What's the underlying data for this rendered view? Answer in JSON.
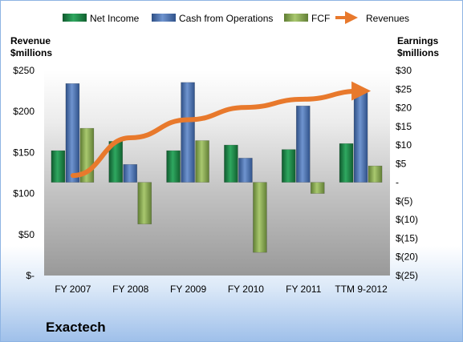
{
  "chart_data": {
    "type": "bar",
    "company": "Exactech",
    "categories": [
      "FY 2007",
      "FY 2008",
      "FY 2009",
      "FY 2010",
      "FY 2011",
      "TTM 9-2012"
    ],
    "series": [
      {
        "name": "Net Income",
        "axis": "right",
        "color": "#1e8a4a",
        "values": [
          8.5,
          11.0,
          8.5,
          10.0,
          8.8,
          10.4
        ]
      },
      {
        "name": "Cash from Operations",
        "axis": "right",
        "color": "#4a72b0",
        "values": [
          26.5,
          4.8,
          26.8,
          6.5,
          20.5,
          24.9
        ]
      },
      {
        "name": "FCF",
        "axis": "right",
        "color": "#8fb05a",
        "values": [
          14.5,
          -11.2,
          11.2,
          -18.8,
          -3.0,
          4.4
        ]
      },
      {
        "name": "Revenues",
        "axis": "left",
        "type": "line-arrow",
        "color": "#e8792c",
        "values": [
          122,
          168,
          190,
          205,
          215,
          225
        ]
      }
    ],
    "left_axis": {
      "title_lines": [
        "Revenue",
        "$millions"
      ],
      "ticks": [
        "$250",
        "$200",
        "$150",
        "$100",
        "$50",
        "$-"
      ],
      "ylim": [
        0,
        250
      ]
    },
    "right_axis": {
      "title_lines": [
        "Earnings",
        "$millions"
      ],
      "ticks": [
        "$30",
        "$25",
        "$20",
        "$15",
        "$10",
        "$5",
        "-",
        "$(5)",
        "$(10)",
        "$(15)",
        "$(20)",
        "$(25)"
      ],
      "ylim": [
        -25,
        30
      ]
    },
    "legend_position": "top",
    "grid": false
  }
}
